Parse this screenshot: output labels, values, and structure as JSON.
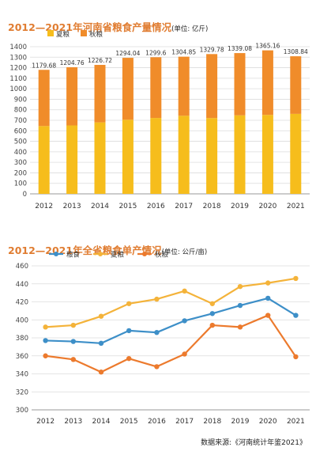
{
  "page": {
    "source": "数据来源:《河南统计年鉴2021》"
  },
  "chart_data": [
    {
      "type": "bar",
      "stacked": true,
      "title": "2012—2021年河南省粮食产量情况",
      "unit": "(单位: 亿斤)",
      "categories": [
        "2012",
        "2013",
        "2014",
        "2015",
        "2016",
        "2017",
        "2018",
        "2019",
        "2020",
        "2021"
      ],
      "series": [
        {
          "name": "夏粮",
          "color": "#f6bd1c",
          "values": [
            645,
            651,
            680,
            705,
            722,
            743,
            721,
            747,
            751,
            761
          ]
        },
        {
          "name": "秋粮",
          "color": "#f08c2a",
          "values": [
            534.68,
            553.76,
            546.72,
            589.04,
            577.6,
            561.85,
            608.78,
            592.08,
            614.16,
            547.84
          ]
        }
      ],
      "total_labels": [
        "1179.68",
        "1204.76",
        "1226.72",
        "1294.04",
        "1299.6",
        "1304.85",
        "1329.78",
        "1339.08",
        "1365.16",
        "1308.84"
      ],
      "yticks": [
        0,
        100,
        200,
        300,
        400,
        500,
        600,
        700,
        800,
        900,
        1000,
        1100,
        1200,
        1300,
        1400
      ],
      "ylim": [
        0,
        1400
      ],
      "grid": true,
      "legend": "top-left"
    },
    {
      "type": "line",
      "title": "2012—2021年全省粮食单产情况",
      "unit": "(单位: 公斤/亩)",
      "x": [
        "2012",
        "2013",
        "2014",
        "2015",
        "2016",
        "2017",
        "2018",
        "2019",
        "2020",
        "2021"
      ],
      "series": [
        {
          "name": "粮食",
          "color": "#3d8fc8",
          "values": [
            377,
            376,
            374,
            388,
            386,
            399,
            407,
            416,
            424,
            405
          ]
        },
        {
          "name": "夏粮",
          "color": "#f4b33a",
          "values": [
            392,
            394,
            404,
            418,
            423,
            432,
            418,
            437,
            441,
            446
          ]
        },
        {
          "name": "秋粮",
          "color": "#ec7a2d",
          "values": [
            360,
            356,
            342,
            357,
            348,
            362,
            394,
            392,
            405,
            359
          ]
        }
      ],
      "yticks": [
        300,
        320,
        340,
        360,
        380,
        400,
        420,
        440,
        460
      ],
      "ylim": [
        300,
        460
      ],
      "grid": true,
      "legend": "top-left"
    }
  ]
}
